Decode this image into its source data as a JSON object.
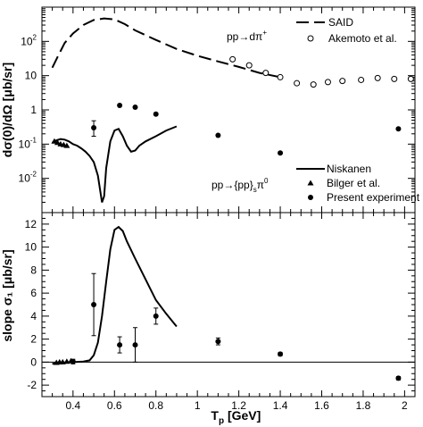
{
  "chart_data": [
    {
      "type": "scatter",
      "panel": "top",
      "ylabel": "dσ(0)/dΩ [μb/sr]",
      "yscale": "log",
      "xlim": [
        0.25,
        2.05
      ],
      "ylim": [
        0.001,
        1000
      ],
      "x_ticks": [
        "0.4",
        "0.6",
        "0.8",
        "1",
        "1.2",
        "1.4",
        "1.6",
        "1.8",
        "2"
      ],
      "y_ticks": [
        {
          "base": "10",
          "exp": "-2",
          "value": 0.01
        },
        {
          "base": "10",
          "exp": "-1",
          "value": 0.1
        },
        {
          "base": "1",
          "exp": "",
          "value": 1
        },
        {
          "base": "10",
          "exp": "",
          "value": 10
        },
        {
          "base": "10",
          "exp": "2",
          "value": 100
        }
      ],
      "reactions": {
        "upper": {
          "base": "pp→dπ",
          "sup": "+"
        },
        "lower": {
          "base": "pp→{pp}",
          "sub": "s",
          "tail": "π",
          "sup": "0"
        }
      },
      "legend_upper": [
        {
          "label": "SAID",
          "style": "dashed-line"
        },
        {
          "label": "Akemoto et al.",
          "style": "open-circle"
        }
      ],
      "legend_lower": [
        {
          "label": "Niskanen",
          "style": "solid-line"
        },
        {
          "label": "Bilger et al.",
          "style": "triangle"
        },
        {
          "label": "Present experiment",
          "style": "filled-circle"
        }
      ],
      "series": [
        {
          "name": "SAID",
          "style": "dashed-line",
          "x": [
            0.3,
            0.33,
            0.36,
            0.4,
            0.45,
            0.5,
            0.55,
            0.6,
            0.65,
            0.7,
            0.8,
            0.9,
            1.0,
            1.1,
            1.2,
            1.3,
            1.4
          ],
          "y": [
            17,
            40,
            90,
            170,
            300,
            420,
            470,
            440,
            320,
            210,
            110,
            60,
            38,
            26,
            18,
            12,
            9
          ]
        },
        {
          "name": "Akemoto et al.",
          "style": "open-circle",
          "x": [
            1.17,
            1.25,
            1.33,
            1.4,
            1.48,
            1.56,
            1.63,
            1.7,
            1.79,
            1.87,
            1.95,
            2.03
          ],
          "y": [
            30,
            20,
            12,
            9,
            6,
            5.5,
            6.5,
            7,
            7.5,
            8.5,
            8,
            8
          ]
        },
        {
          "name": "Niskanen",
          "style": "solid-line",
          "x": [
            0.3,
            0.32,
            0.34,
            0.36,
            0.38,
            0.4,
            0.42,
            0.44,
            0.46,
            0.48,
            0.5,
            0.52,
            0.54,
            0.55,
            0.56,
            0.58,
            0.6,
            0.62,
            0.64,
            0.66,
            0.68,
            0.7,
            0.72,
            0.75,
            0.8,
            0.85,
            0.9
          ],
          "y": [
            0.11,
            0.13,
            0.14,
            0.135,
            0.12,
            0.1,
            0.09,
            0.075,
            0.06,
            0.045,
            0.03,
            0.012,
            0.002,
            0.003,
            0.02,
            0.12,
            0.25,
            0.28,
            0.17,
            0.09,
            0.06,
            0.065,
            0.09,
            0.12,
            0.17,
            0.25,
            0.33
          ]
        },
        {
          "name": "Bilger et al.",
          "style": "triangle",
          "x": [
            0.31,
            0.325,
            0.34,
            0.355,
            0.37
          ],
          "y": [
            0.12,
            0.11,
            0.1,
            0.095,
            0.09
          ]
        },
        {
          "name": "Present experiment",
          "style": "filled-circle",
          "x": [
            0.5,
            0.625,
            0.7,
            0.8,
            1.1,
            1.4,
            1.97
          ],
          "y": [
            0.3,
            1.35,
            1.2,
            0.75,
            0.18,
            0.055,
            0.28
          ],
          "err_lo": [
            0.17,
            null,
            null,
            null,
            null,
            null,
            null
          ],
          "err_hi": [
            0.48,
            null,
            null,
            null,
            null,
            null,
            null
          ]
        }
      ]
    },
    {
      "type": "scatter",
      "panel": "bottom",
      "xlabel": {
        "base": "T",
        "sub": "p",
        "tail": " [GeV]"
      },
      "ylabel": "slope σ₁ [μb/sr]",
      "xlim": [
        0.25,
        2.05
      ],
      "ylim": [
        -3,
        13
      ],
      "x_ticks": [
        "0.4",
        "0.6",
        "0.8",
        "1",
        "1.2",
        "1.4",
        "1.6",
        "1.8",
        "2"
      ],
      "y_ticks": [
        "-2",
        "0",
        "2",
        "4",
        "6",
        "8",
        "10",
        "12"
      ],
      "series": [
        {
          "name": "Niskanen",
          "style": "solid-line",
          "x": [
            0.3,
            0.35,
            0.4,
            0.45,
            0.48,
            0.5,
            0.52,
            0.54,
            0.56,
            0.58,
            0.6,
            0.62,
            0.64,
            0.66,
            0.7,
            0.75,
            0.8,
            0.85,
            0.9
          ],
          "y": [
            -0.15,
            -0.05,
            0.0,
            0.05,
            0.15,
            0.6,
            1.7,
            4.0,
            7.0,
            9.8,
            11.5,
            11.75,
            11.4,
            10.5,
            9.0,
            7.2,
            5.4,
            4.2,
            3.1
          ]
        },
        {
          "style": "zero-line",
          "x": [
            0.25,
            2.05
          ],
          "y": [
            0,
            0
          ]
        },
        {
          "name": "Bilger et al.",
          "style": "triangle",
          "x": [
            0.32,
            0.335,
            0.35,
            0.37,
            0.39
          ],
          "y": [
            -0.05,
            0.0,
            0.0,
            0.05,
            0.1
          ]
        },
        {
          "name": "Present experiment",
          "style": "filled-circle",
          "x": [
            0.4,
            0.5,
            0.625,
            0.7,
            0.8,
            1.1,
            1.4,
            1.97
          ],
          "y": [
            0.05,
            5.0,
            1.5,
            1.5,
            4.0,
            1.8,
            0.7,
            -1.4
          ],
          "err": [
            0.2,
            2.7,
            0.7,
            1.5,
            0.7,
            0.3,
            0.15,
            0.15
          ]
        }
      ]
    }
  ]
}
